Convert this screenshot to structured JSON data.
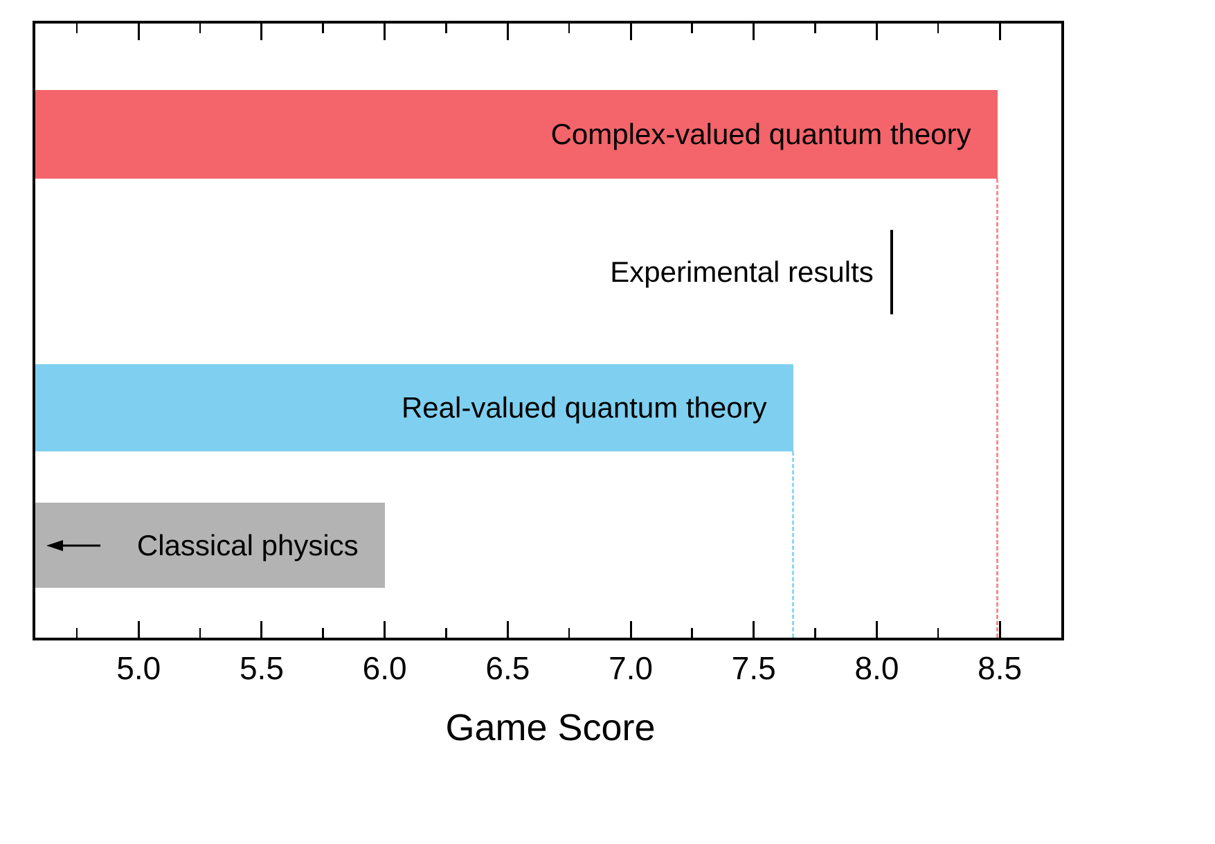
{
  "chart_data": {
    "type": "bar",
    "orientation": "horizontal",
    "title": "",
    "xlabel": "Game Score",
    "ylabel": "",
    "xlim": [
      4.58,
      8.75
    ],
    "x_major_ticks": [
      "5.0",
      "5.5",
      "6.0",
      "6.5",
      "7.0",
      "7.5",
      "8.0",
      "8.5"
    ],
    "x_minor_tick_step": 0.25,
    "grid": false,
    "legend": "none",
    "bars": [
      {
        "label": "Complex-valued quantum theory",
        "value": 8.49,
        "color": "#f4646b",
        "guide_line": true,
        "left_arrow": false
      },
      {
        "label": "Real-valued quantum theory",
        "value": 7.66,
        "color": "#7fd0f0",
        "guide_line": true,
        "left_arrow": false
      },
      {
        "label": "Classical physics",
        "value": 6.0,
        "color": "#b3b3b3",
        "guide_line": false,
        "left_arrow": true
      }
    ],
    "marker": {
      "label": "Experimental results",
      "value": 8.06,
      "color": "#000000"
    },
    "guide_colors": {
      "complex": "#f58d93",
      "real": "#8fd6f2"
    }
  }
}
